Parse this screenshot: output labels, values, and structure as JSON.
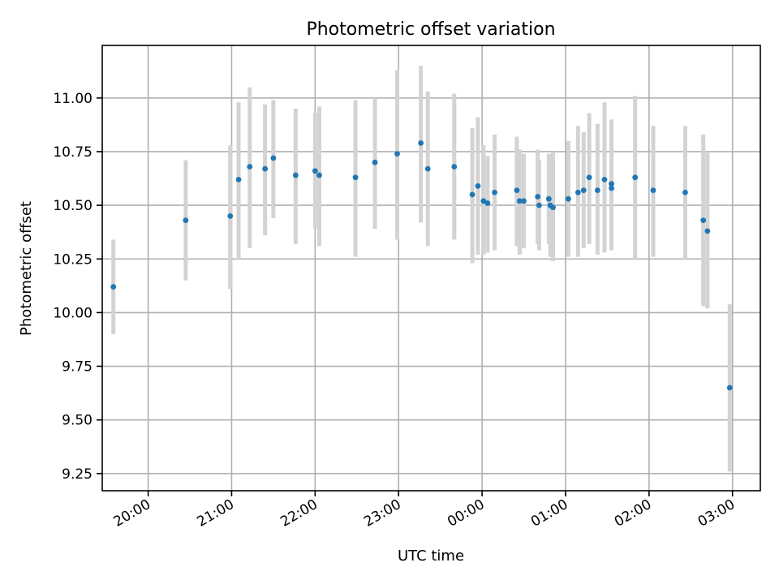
{
  "chart_data": {
    "type": "scatter",
    "title": "Photometric offset variation",
    "xlabel": "UTC time",
    "ylabel": "Photometric offset",
    "xlim": [
      "19:27",
      "03:20"
    ],
    "ylim": [
      9.17,
      11.245
    ],
    "grid": true,
    "x_ticks": [
      "20:00",
      "21:00",
      "22:00",
      "23:00",
      "00:00",
      "01:00",
      "02:00",
      "03:00"
    ],
    "y_ticks": [
      "9.25",
      "9.50",
      "9.75",
      "10.00",
      "10.25",
      "10.50",
      "10.75",
      "11.00"
    ],
    "series": [
      {
        "style": {
          "point_color": "#1f77b4",
          "errorbar_color": "#d3d3d3"
        },
        "points": [
          {
            "x": "19:35",
            "y": 10.12,
            "lo": 9.9,
            "hi": 10.34
          },
          {
            "x": "20:27",
            "y": 10.43,
            "lo": 10.15,
            "hi": 10.71
          },
          {
            "x": "20:59",
            "y": 10.45,
            "lo": 10.11,
            "hi": 10.78
          },
          {
            "x": "21:05",
            "y": 10.62,
            "lo": 10.25,
            "hi": 10.98
          },
          {
            "x": "21:13",
            "y": 10.68,
            "lo": 10.3,
            "hi": 11.05
          },
          {
            "x": "21:24",
            "y": 10.67,
            "lo": 10.36,
            "hi": 10.97
          },
          {
            "x": "21:30",
            "y": 10.72,
            "lo": 10.44,
            "hi": 10.99
          },
          {
            "x": "21:46",
            "y": 10.64,
            "lo": 10.32,
            "hi": 10.95
          },
          {
            "x": "22:00",
            "y": 10.66,
            "lo": 10.39,
            "hi": 10.93
          },
          {
            "x": "22:03",
            "y": 10.64,
            "lo": 10.31,
            "hi": 10.96
          },
          {
            "x": "22:29",
            "y": 10.63,
            "lo": 10.26,
            "hi": 10.99
          },
          {
            "x": "22:43",
            "y": 10.7,
            "lo": 10.39,
            "hi": 11.0
          },
          {
            "x": "22:59",
            "y": 10.74,
            "lo": 10.34,
            "hi": 11.13
          },
          {
            "x": "23:16",
            "y": 10.79,
            "lo": 10.42,
            "hi": 11.15
          },
          {
            "x": "23:21",
            "y": 10.67,
            "lo": 10.31,
            "hi": 11.03
          },
          {
            "x": "23:40",
            "y": 10.68,
            "lo": 10.34,
            "hi": 11.02
          },
          {
            "x": "23:53",
            "y": 10.55,
            "lo": 10.23,
            "hi": 10.86
          },
          {
            "x": "23:57",
            "y": 10.59,
            "lo": 10.27,
            "hi": 10.91
          },
          {
            "x": "00:01",
            "y": 10.52,
            "lo": 10.27,
            "hi": 10.78
          },
          {
            "x": "00:04",
            "y": 10.51,
            "lo": 10.28,
            "hi": 10.73
          },
          {
            "x": "00:09",
            "y": 10.56,
            "lo": 10.29,
            "hi": 10.83
          },
          {
            "x": "00:25",
            "y": 10.57,
            "lo": 10.31,
            "hi": 10.82
          },
          {
            "x": "00:27",
            "y": 10.52,
            "lo": 10.27,
            "hi": 10.76
          },
          {
            "x": "00:30",
            "y": 10.52,
            "lo": 10.3,
            "hi": 10.74
          },
          {
            "x": "00:40",
            "y": 10.54,
            "lo": 10.32,
            "hi": 10.76
          },
          {
            "x": "00:41",
            "y": 10.5,
            "lo": 10.29,
            "hi": 10.71
          },
          {
            "x": "00:48",
            "y": 10.53,
            "lo": 10.32,
            "hi": 10.74
          },
          {
            "x": "00:49",
            "y": 10.5,
            "lo": 10.26,
            "hi": 10.74
          },
          {
            "x": "00:51",
            "y": 10.49,
            "lo": 10.24,
            "hi": 10.75
          },
          {
            "x": "01:02",
            "y": 10.53,
            "lo": 10.26,
            "hi": 10.8
          },
          {
            "x": "01:09",
            "y": 10.56,
            "lo": 10.26,
            "hi": 10.87
          },
          {
            "x": "01:13",
            "y": 10.57,
            "lo": 10.3,
            "hi": 10.84
          },
          {
            "x": "01:17",
            "y": 10.63,
            "lo": 10.32,
            "hi": 10.93
          },
          {
            "x": "01:23",
            "y": 10.57,
            "lo": 10.27,
            "hi": 10.88
          },
          {
            "x": "01:28",
            "y": 10.62,
            "lo": 10.28,
            "hi": 10.98
          },
          {
            "x": "01:33",
            "y": 10.6,
            "lo": 10.29,
            "hi": 10.9
          },
          {
            "x": "01:33",
            "y": 10.58,
            "lo": 10.3,
            "hi": 10.86
          },
          {
            "x": "01:50",
            "y": 10.63,
            "lo": 10.25,
            "hi": 11.01
          },
          {
            "x": "02:03",
            "y": 10.57,
            "lo": 10.26,
            "hi": 10.87
          },
          {
            "x": "02:26",
            "y": 10.56,
            "lo": 10.25,
            "hi": 10.87
          },
          {
            "x": "02:39",
            "y": 10.43,
            "lo": 10.03,
            "hi": 10.83
          },
          {
            "x": "02:42",
            "y": 10.38,
            "lo": 10.02,
            "hi": 10.75
          },
          {
            "x": "02:58",
            "y": 9.65,
            "lo": 9.26,
            "hi": 10.04
          }
        ]
      }
    ]
  }
}
